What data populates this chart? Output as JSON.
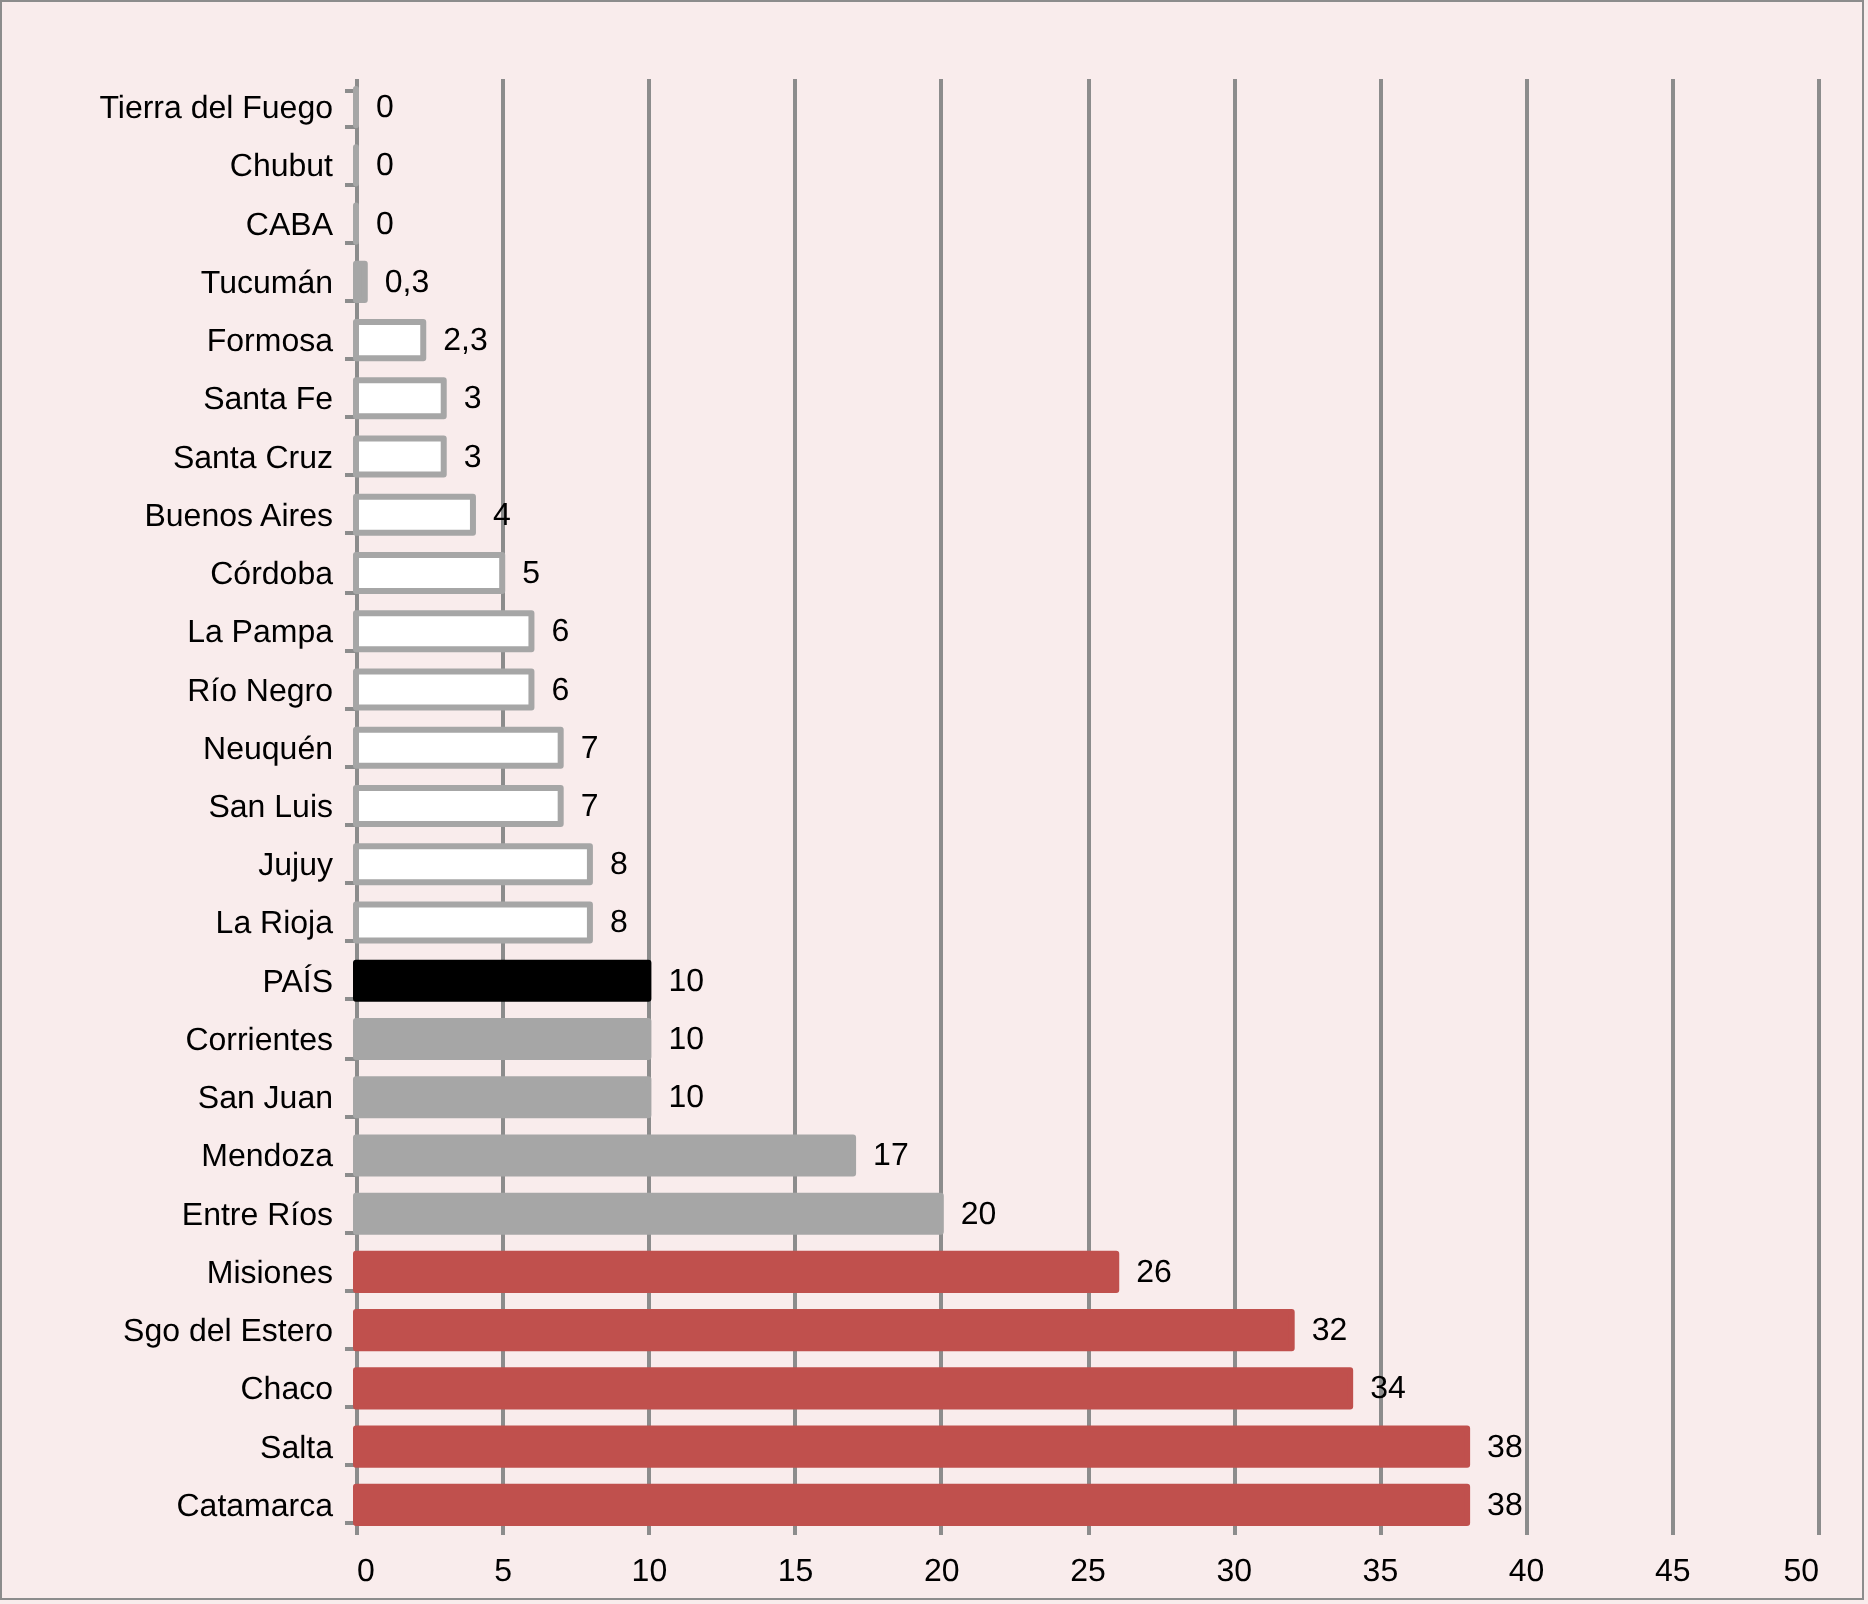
{
  "chart_data": {
    "type": "bar",
    "orientation": "horizontal",
    "categories": [
      "Tierra del Fuego",
      "Chubut",
      "CABA",
      "Tucumán",
      "Formosa",
      "Santa Fe",
      "Santa Cruz",
      "Buenos Aires",
      "Córdoba",
      "La Pampa",
      "Río Negro",
      "Neuquén",
      "San Luis",
      "Jujuy",
      "La Rioja",
      "PAÍS",
      "Corrientes",
      "San Juan",
      "Mendoza",
      "Entre Ríos",
      "Misiones",
      "Sgo del Estero",
      "Chaco",
      "Salta",
      "Catamarca"
    ],
    "values": [
      0,
      0,
      0,
      0.3,
      2.3,
      3,
      3,
      4,
      5,
      6,
      6,
      7,
      7,
      8,
      8,
      10,
      10,
      10,
      17,
      20,
      26,
      32,
      34,
      38,
      38
    ],
    "value_labels": [
      "0",
      "0",
      "0",
      "0,3",
      "2,3",
      "3",
      "3",
      "4",
      "5",
      "6",
      "6",
      "7",
      "7",
      "8",
      "8",
      "10",
      "10",
      "10",
      "17",
      "20",
      "26",
      "32",
      "34",
      "38",
      "38"
    ],
    "colors": [
      "#a6a6a6",
      "#a6a6a6",
      "#a6a6a6",
      "#a6a6a6",
      "#ffffff",
      "#ffffff",
      "#ffffff",
      "#ffffff",
      "#ffffff",
      "#ffffff",
      "#ffffff",
      "#ffffff",
      "#ffffff",
      "#ffffff",
      "#ffffff",
      "#000000",
      "#a6a6a6",
      "#a6a6a6",
      "#a6a6a6",
      "#a6a6a6",
      "#c0504d",
      "#c0504d",
      "#c0504d",
      "#c0504d",
      "#c0504d"
    ],
    "xlim": [
      0,
      50
    ],
    "xticks": [
      0,
      5,
      10,
      15,
      20,
      25,
      30,
      35,
      40,
      45,
      50
    ],
    "grid": "x"
  }
}
